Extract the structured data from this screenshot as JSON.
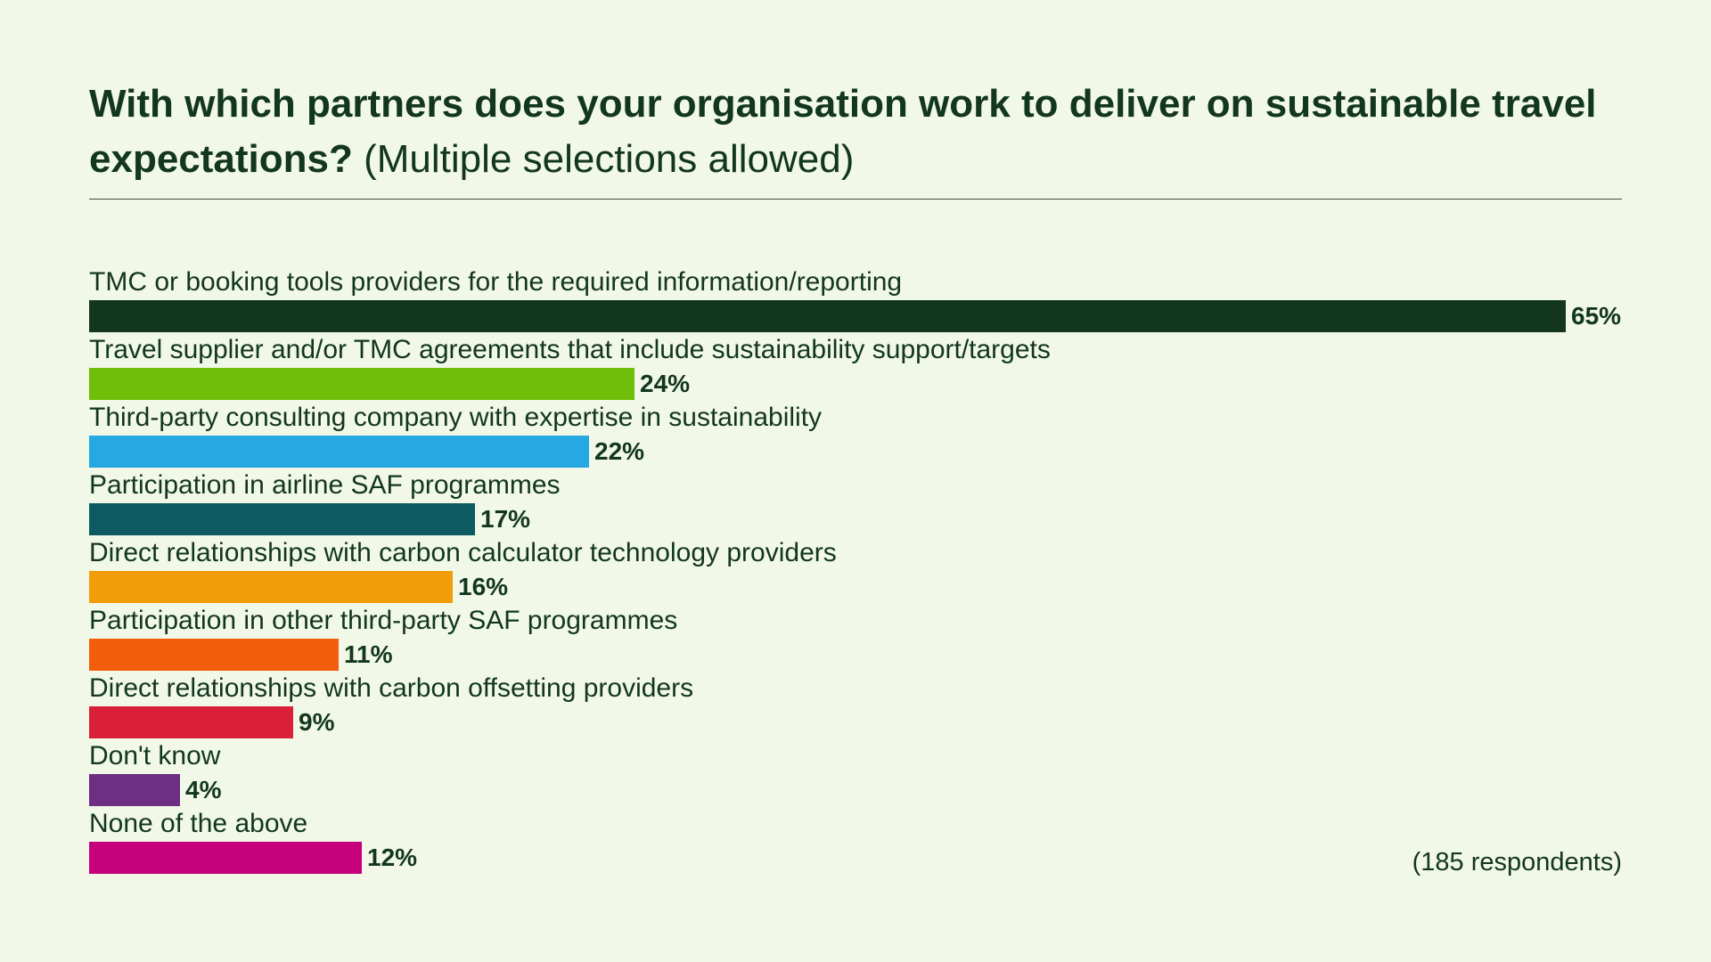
{
  "chart_data": {
    "type": "bar",
    "orientation": "horizontal",
    "title": "With which partners does your organisation work to deliver on sustainable travel expectations?",
    "subtitle": "(Multiple selections allowed)",
    "xlim": [
      0,
      65
    ],
    "grid": false,
    "legend": "none",
    "value_suffix": "%",
    "categories": [
      "TMC or booking tools providers for the required information/reporting",
      "Travel supplier and/or TMC agreements that include sustainability support/targets",
      "Third-party consulting company with expertise in sustainability",
      "Participation in airline SAF programmes",
      "Direct relationships with carbon calculator technology providers",
      "Participation in other third-party SAF programmes",
      "Direct relationships with carbon offsetting providers",
      "Don't know",
      "None of the above"
    ],
    "values": [
      65,
      24,
      22,
      17,
      16,
      11,
      9,
      4,
      12
    ],
    "value_labels": [
      "65%",
      "24%",
      "22%",
      "17%",
      "16%",
      "11%",
      "9%",
      "4%",
      "12%"
    ],
    "colors": [
      "#12361e",
      "#6fbe0a",
      "#26a8e2",
      "#0d5a63",
      "#f09d07",
      "#f15d0c",
      "#db1f38",
      "#6d2e83",
      "#c5007a"
    ],
    "note": "(185 respondents)"
  }
}
